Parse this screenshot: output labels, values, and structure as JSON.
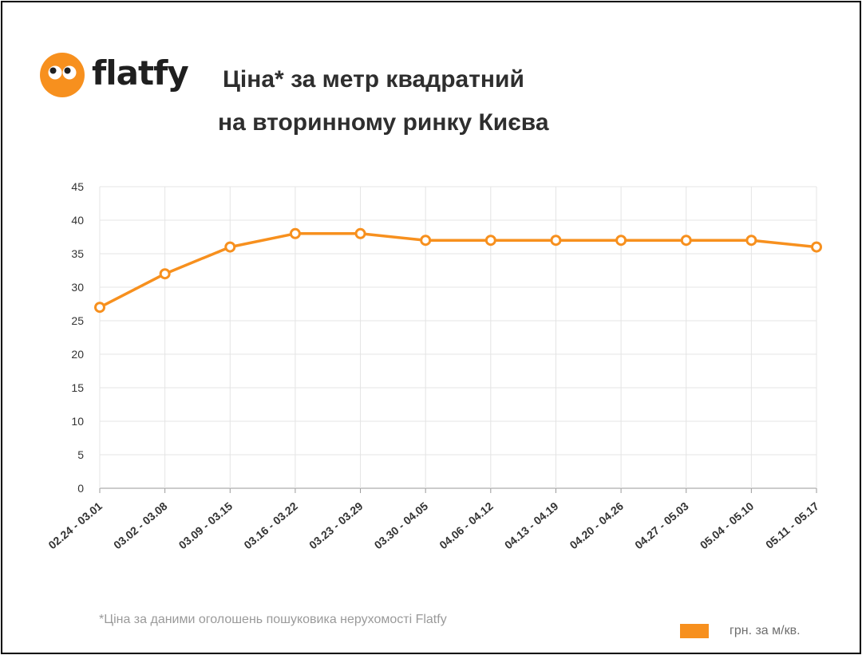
{
  "brand": {
    "name": "flatfy",
    "logo_icon": "flatfy-eyes-logo-icon",
    "logo_color": "#F7901E"
  },
  "header": {
    "title_line1": "Ціна* за метр квадратний",
    "title_line2": "на вторинному ринку Києва"
  },
  "footnote": "*Ціна за даними оголошень пошуковика нерухомості Flatfy",
  "chart_data": {
    "type": "line",
    "title": "Ціна* за метр квадратний на вторинному ринку Києва",
    "xlabel": "",
    "ylabel": "",
    "categories": [
      "02.24 - 03.01",
      "03.02 - 03.08",
      "03.09 - 03.15",
      "03.16 - 03.22",
      "03.23 - 03.29",
      "03.30 - 04.05",
      "04.06 - 04.12",
      "04.13 - 04.19",
      "04.20 - 04.26",
      "04.27 - 05.03",
      "05.04 - 05.10",
      "05.11 - 05.17"
    ],
    "series": [
      {
        "name": "грн. за м/кв.",
        "color": "#F7901E",
        "values": [
          27,
          32,
          36,
          38,
          38,
          37,
          37,
          37,
          37,
          37,
          37,
          36
        ]
      }
    ],
    "ylim": [
      0,
      45
    ],
    "yticks": [
      0,
      5,
      10,
      15,
      20,
      25,
      30,
      35,
      40,
      45
    ],
    "grid": true,
    "legend_position": "bottom-right"
  }
}
